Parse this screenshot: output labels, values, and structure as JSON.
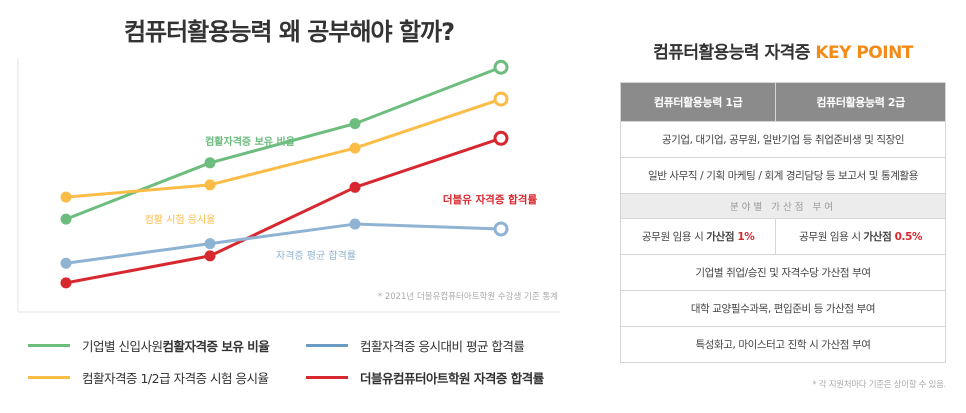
{
  "left_title": "컴퓨터활용능력 왜 공부해야 할까?",
  "chart_data": {
    "type": "line",
    "title": "컴퓨터활용능력 왜 공부해야 할까?",
    "x": [
      1,
      2,
      3,
      4
    ],
    "ylim": [
      0,
      100
    ],
    "grid": false,
    "note": "* 2021년 더블유컴퓨터아트학원 수강생 기준 통계",
    "series": [
      {
        "name": "기업별 신입사원 컴활자격증 보유 비율",
        "label": "컴활자격증 보유 비율",
        "color": "#6cbd7e",
        "values": [
          33,
          56,
          72,
          95
        ]
      },
      {
        "name": "컴활자격증 1/2급 자격증 시험 응시율",
        "label": "컴활 시험 응시율",
        "color": "#fbbd48",
        "values": [
          42,
          47,
          62,
          82
        ]
      },
      {
        "name": "더블유컴퓨터아트학원 자격증 합격률",
        "label": "더블유 자격증 합격률",
        "color": "#d8282f",
        "values": [
          7,
          18,
          46,
          66
        ]
      },
      {
        "name": "컴활자격증 응시대비 평균 합격률",
        "label": "자격증 평균 합격률",
        "color": "#8fb3d3",
        "values": [
          15,
          23,
          31,
          29
        ]
      }
    ]
  },
  "legend": [
    {
      "label_a": "기업별 신입사원 ",
      "label_b": "컴활자격증 보유 비율",
      "color": "#6cbd7e"
    },
    {
      "label_a": "컴활자격증 응시대비 평균 합격률",
      "label_b": "",
      "color": "#6b9cc6"
    },
    {
      "label_a": "컴활자격증 1/2급 자격증 시험 응시율",
      "label_b": "",
      "color": "#fbbd48"
    },
    {
      "label_a": "",
      "label_b": "더블유컴퓨터아트학원 자격증 합격률",
      "color": "#d8282f"
    }
  ],
  "right": {
    "title_main": "컴퓨터활용능력 자격증 ",
    "title_accent": "KEY POINT",
    "header": [
      "컴퓨터활용능력 1급",
      "컴퓨터활용능력 2급"
    ],
    "row1": "공기업, 대기업, 공무원, 일반기업 등 취업준비생 및 직장인",
    "row2": "일반 사무직 / 기획 마케팅 / 회계 경리담당 등 보고서 및 통계활용",
    "section": "분야별 가산점 부여",
    "row3_left_a": "공무원 임용 시 ",
    "row3_left_b": "가산점 ",
    "row3_left_c": "1%",
    "row3_right_a": "공무원 임용 시 ",
    "row3_right_b": "가산점 ",
    "row3_right_c": "0.5%",
    "row4": "기업별 취업/승진 및 자격수당 가산점 부여",
    "row5": "대학 교양필수과목, 편입준비 등 가산점 부여",
    "row6": "특성화고, 마이스터고 진학 시 가산점 부여",
    "footnote": "* 각 지원처마다 기준은 상이할 수 있음."
  },
  "colors": {
    "accent": "#f28b18",
    "highlight": "#d8282f",
    "table_header": "#8b8b8b"
  }
}
